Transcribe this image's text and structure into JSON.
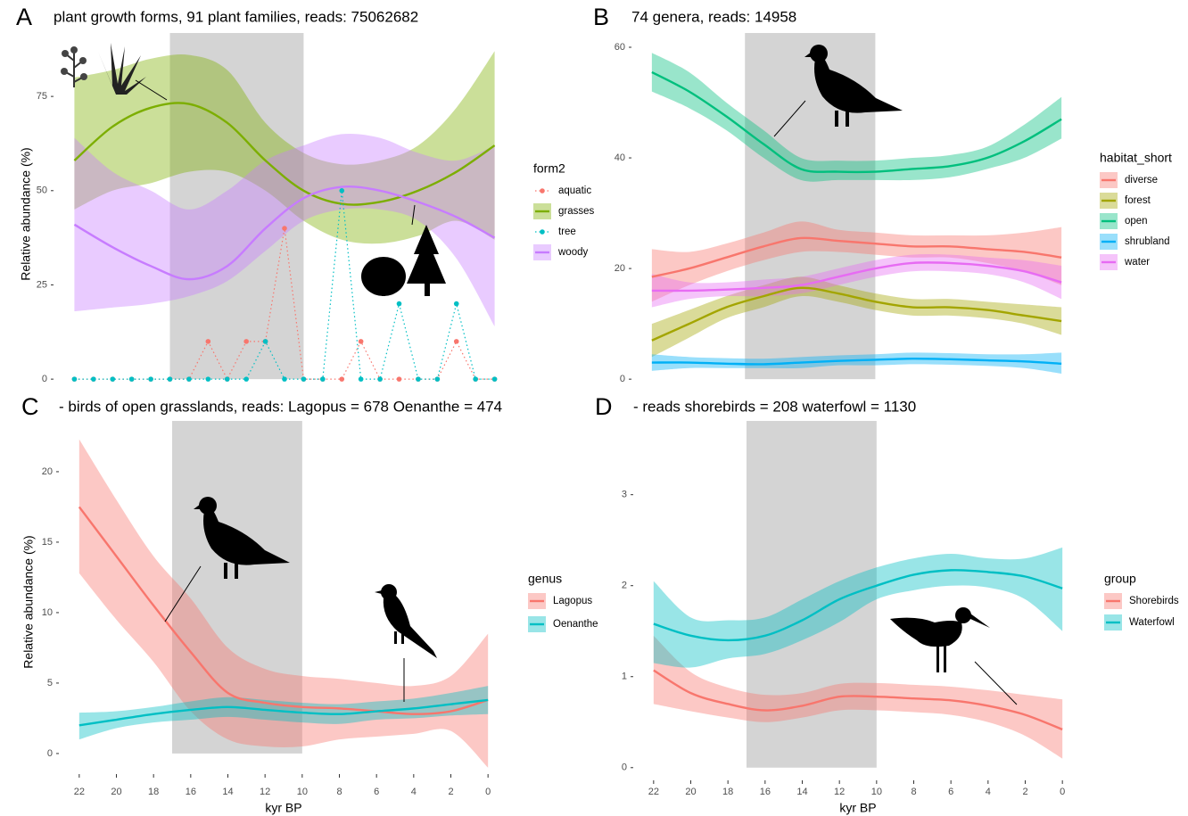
{
  "chart_data": [
    {
      "type": "line",
      "panel_label": "A",
      "title": "plant growth forms, 91 plant families, reads: 75062682",
      "y_label": "Relative abundance (%)",
      "legend_title": "form2",
      "xlim": [
        23,
        -1
      ],
      "ylim": [
        -4.7,
        92.3
      ],
      "yticks": [
        0,
        25,
        50,
        75
      ],
      "shaded_x": [
        17,
        10
      ],
      "x": [
        22,
        20,
        18,
        16,
        14,
        12,
        10,
        8,
        6,
        4,
        2,
        0
      ],
      "series": [
        {
          "name": "aquatic",
          "color": "#f8766d",
          "style": "points",
          "x": [
            22,
            21,
            20,
            19,
            18,
            17,
            16,
            15,
            14,
            13,
            12,
            11,
            10,
            9,
            8,
            7,
            6,
            5,
            4,
            3,
            2,
            1,
            0
          ],
          "values": [
            0,
            0,
            0,
            0,
            0,
            0,
            0,
            10,
            0,
            10,
            10,
            40,
            0,
            0,
            0,
            10,
            0,
            0,
            0,
            0,
            10,
            0,
            0
          ]
        },
        {
          "name": "grasses",
          "color": "#7cae00",
          "style": "smooth",
          "values": [
            58,
            67,
            72,
            73,
            68,
            58,
            50,
            46.5,
            47,
            50,
            55,
            62
          ],
          "lower": [
            45,
            50,
            52,
            55,
            55,
            50,
            42,
            37,
            36,
            38,
            42,
            37
          ],
          "upper": [
            80,
            82,
            85,
            86,
            82,
            68,
            60,
            57,
            58,
            62,
            72,
            87
          ]
        },
        {
          "name": "tree",
          "color": "#00bfc4",
          "style": "points",
          "x": [
            22,
            21,
            20,
            19,
            18,
            17,
            16,
            15,
            14,
            13,
            12,
            11,
            10,
            9,
            8,
            7,
            6,
            5,
            4,
            3,
            2,
            1,
            0
          ],
          "values": [
            0,
            0,
            0,
            0,
            0,
            0,
            0,
            0,
            0,
            0,
            10,
            0,
            0,
            0,
            50,
            0,
            0,
            20,
            0,
            0,
            20,
            0,
            0
          ]
        },
        {
          "name": "woody",
          "color": "#c77cff",
          "style": "smooth",
          "values": [
            41,
            35,
            30,
            26.5,
            30,
            40,
            48,
            51,
            50,
            47,
            43,
            37.5
          ],
          "lower": [
            18,
            19,
            20,
            22,
            26,
            34,
            42,
            45,
            45,
            42,
            32,
            14
          ],
          "upper": [
            64,
            55,
            50,
            45,
            50,
            58,
            62,
            65,
            64,
            60,
            58,
            62
          ]
        }
      ]
    },
    {
      "type": "line",
      "panel_label": "B",
      "title": "74 genera,  reads: 14958",
      "legend_title": "habitat_short",
      "xlim": [
        23,
        -1
      ],
      "ylim": [
        -3.2,
        62.9
      ],
      "yticks": [
        0,
        20,
        40,
        60
      ],
      "shaded_x": [
        17,
        10
      ],
      "x": [
        22,
        20,
        18,
        16,
        14,
        12,
        10,
        8,
        6,
        4,
        2,
        0
      ],
      "series": [
        {
          "name": "diverse",
          "color": "#f8766d",
          "style": "smooth",
          "values": [
            18.5,
            20,
            22,
            24,
            25.5,
            25,
            24.5,
            24,
            24,
            23.5,
            23,
            22
          ],
          "lower": [
            14,
            17,
            19.5,
            21.5,
            23,
            23,
            22.5,
            22,
            22,
            21,
            19.5,
            17
          ],
          "upper": [
            23.5,
            23,
            24.5,
            26.5,
            28.5,
            27,
            26.5,
            26,
            26,
            26,
            26.5,
            27.5
          ]
        },
        {
          "name": "forest",
          "color": "#a3a500",
          "style": "smooth",
          "values": [
            7,
            10,
            13,
            15,
            16.5,
            15.5,
            14,
            13,
            13,
            12.5,
            11.5,
            10.5
          ],
          "lower": [
            4,
            7.5,
            11,
            13,
            15,
            14,
            12.5,
            11.5,
            11.5,
            11,
            10,
            8
          ],
          "upper": [
            10,
            12.5,
            15,
            17,
            18.5,
            17,
            15.5,
            14.5,
            14.5,
            14,
            13.5,
            13
          ]
        },
        {
          "name": "open",
          "color": "#00bf7d",
          "style": "smooth",
          "values": [
            55.5,
            52,
            47.5,
            42.5,
            38,
            37.5,
            37.5,
            38,
            38.5,
            40,
            43,
            47
          ],
          "lower": [
            52,
            49,
            45,
            40,
            36,
            36,
            36,
            36,
            36.5,
            38,
            40,
            43.5
          ],
          "upper": [
            59,
            55.5,
            50,
            45,
            40,
            39.5,
            39.5,
            40,
            40.5,
            42,
            46,
            51
          ]
        },
        {
          "name": "shrubland",
          "color": "#00b0f6",
          "style": "smooth",
          "values": [
            3,
            3,
            2.8,
            2.7,
            3,
            3.3,
            3.5,
            3.7,
            3.6,
            3.4,
            3.2,
            2.8
          ],
          "lower": [
            1.5,
            2,
            2,
            2,
            2,
            2.5,
            2.5,
            2.7,
            2.6,
            2.4,
            2,
            1
          ],
          "upper": [
            4.5,
            4,
            3.8,
            3.7,
            4,
            4.3,
            4.5,
            4.8,
            4.7,
            4.5,
            4.5,
            4.8
          ]
        },
        {
          "name": "water",
          "color": "#e76bf3",
          "style": "smooth",
          "values": [
            16,
            16,
            16.2,
            16.5,
            17,
            18.5,
            20,
            21,
            21,
            20.5,
            19.5,
            17.5
          ],
          "lower": [
            13,
            14.5,
            15,
            15,
            15.5,
            17,
            18.5,
            19.5,
            19.5,
            19,
            17.5,
            14.5
          ],
          "upper": [
            19,
            17.5,
            17.5,
            18,
            18.5,
            20,
            21.5,
            22.5,
            22.5,
            22,
            21.5,
            20.5
          ]
        }
      ]
    },
    {
      "type": "line",
      "panel_label": "C",
      "title": "- birds of open grasslands, reads: Lagopus = 678 Oenanthe = 474",
      "y_label": "Relative abundance (%)",
      "x_label": "kyr BP",
      "legend_title": "genus",
      "xlim": [
        23,
        -1
      ],
      "ylim": [
        -1.27,
        23.73
      ],
      "yticks": [
        0,
        5,
        10,
        15,
        20
      ],
      "xticks": [
        22,
        20,
        18,
        16,
        14,
        12,
        10,
        8,
        6,
        4,
        2,
        0
      ],
      "shaded_x": [
        17,
        10
      ],
      "x": [
        22,
        20,
        18,
        16,
        14,
        12,
        10,
        8,
        6,
        4,
        2,
        0
      ],
      "series": [
        {
          "name": "Lagopus",
          "color": "#f8766d",
          "style": "smooth",
          "values": [
            17.5,
            14,
            10.5,
            7.2,
            4.3,
            3.6,
            3.3,
            3.2,
            3.0,
            2.8,
            3.0,
            3.8
          ],
          "lower": [
            12.8,
            9.5,
            6.5,
            3,
            1,
            0.5,
            0.5,
            1,
            1.2,
            1.4,
            1.6,
            -1
          ],
          "upper": [
            22.3,
            18,
            14,
            11,
            7.5,
            6,
            5.5,
            5.3,
            5,
            4.8,
            5.5,
            8.5
          ]
        },
        {
          "name": "Oenanthe",
          "color": "#00bfc4",
          "style": "smooth",
          "values": [
            2.0,
            2.4,
            2.8,
            3.1,
            3.3,
            3.1,
            2.9,
            2.8,
            3.0,
            3.2,
            3.5,
            3.8
          ],
          "lower": [
            1.0,
            1.8,
            2.2,
            2.4,
            2.6,
            2.4,
            2.2,
            2.1,
            2.4,
            2.5,
            2.7,
            2.8
          ],
          "upper": [
            2.9,
            3.0,
            3.3,
            3.7,
            4.0,
            3.8,
            3.6,
            3.5,
            3.7,
            3.9,
            4.3,
            4.8
          ]
        }
      ]
    },
    {
      "type": "line",
      "panel_label": "D",
      "title": "- reads shorebirds = 208 waterfowl = 1130",
      "x_label": "kyr BP",
      "legend_title": "group",
      "xlim": [
        23,
        -1
      ],
      "ylim": [
        -0.11,
        3.83
      ],
      "yticks": [
        0,
        1,
        2,
        3
      ],
      "xticks": [
        22,
        20,
        18,
        16,
        14,
        12,
        10,
        8,
        6,
        4,
        2,
        0
      ],
      "shaded_x": [
        17,
        10
      ],
      "x": [
        22,
        20,
        18,
        16,
        14,
        12,
        10,
        8,
        6,
        4,
        2,
        0
      ],
      "series": [
        {
          "name": "Shorebirds",
          "color": "#f8766d",
          "style": "smooth",
          "values": [
            1.07,
            0.82,
            0.7,
            0.63,
            0.68,
            0.78,
            0.78,
            0.76,
            0.74,
            0.68,
            0.58,
            0.42
          ],
          "lower": [
            0.7,
            0.62,
            0.55,
            0.5,
            0.55,
            0.63,
            0.63,
            0.61,
            0.58,
            0.5,
            0.35,
            0.1
          ],
          "upper": [
            1.45,
            1.05,
            0.88,
            0.8,
            0.82,
            0.92,
            0.93,
            0.91,
            0.89,
            0.85,
            0.8,
            0.75
          ]
        },
        {
          "name": "Waterfowl",
          "color": "#00bfc4",
          "style": "smooth",
          "values": [
            1.58,
            1.45,
            1.4,
            1.45,
            1.62,
            1.85,
            2.0,
            2.12,
            2.17,
            2.15,
            2.1,
            1.97
          ],
          "lower": [
            1.15,
            1.1,
            1.2,
            1.25,
            1.4,
            1.6,
            1.85,
            1.95,
            2.0,
            1.98,
            1.85,
            1.5
          ],
          "upper": [
            2.05,
            1.65,
            1.62,
            1.65,
            1.85,
            2.05,
            2.2,
            2.3,
            2.35,
            2.3,
            2.3,
            2.42
          ]
        }
      ]
    }
  ]
}
